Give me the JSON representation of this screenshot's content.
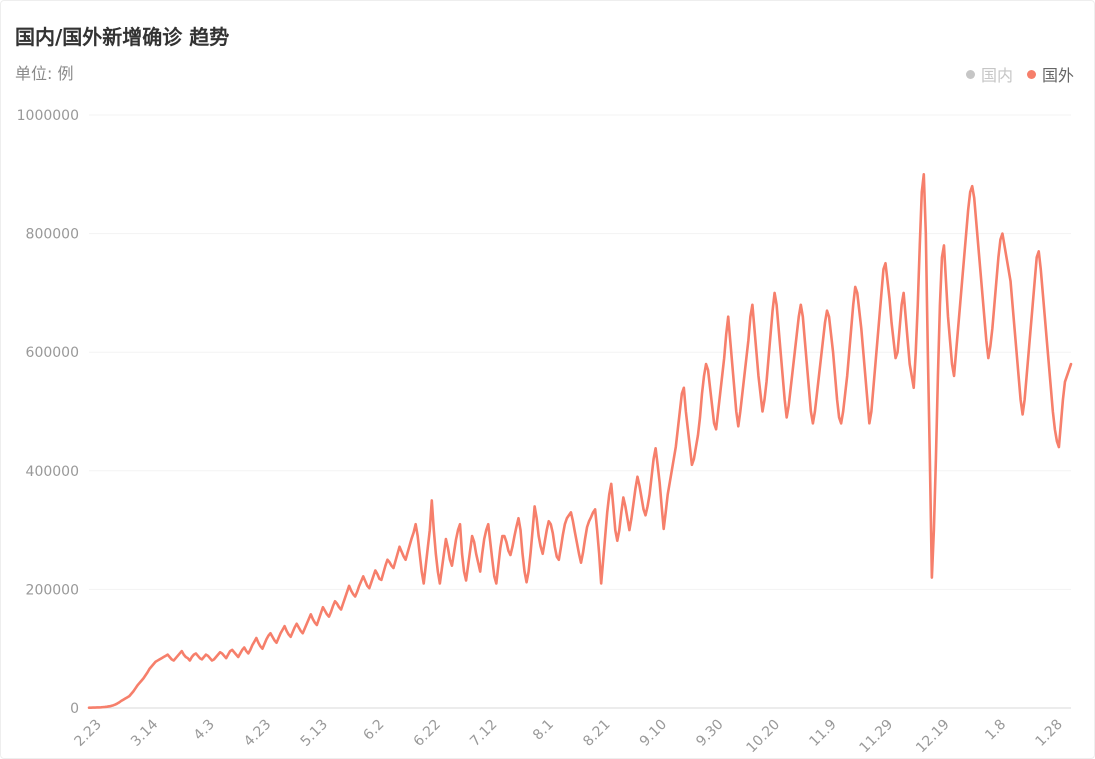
{
  "header": {
    "title": "国内/国外新增确诊 趋势",
    "unit": "单位: 例"
  },
  "legend": [
    {
      "name": "国内",
      "color": "#c6c6c6",
      "active": false
    },
    {
      "name": "国外",
      "color": "#f67f6b",
      "active": true
    }
  ],
  "chart_data": {
    "type": "line",
    "title": "国内/国外新增确诊 趋势",
    "ylabel": "单位: 例",
    "ylim": [
      0,
      1000000
    ],
    "yticks": [
      "0",
      "200000",
      "400000",
      "600000",
      "800000",
      "1000000"
    ],
    "xticks": [
      "2.23",
      "3.14",
      "4.3",
      "4.23",
      "5.13",
      "6.2",
      "6.22",
      "7.12",
      "8.1",
      "8.21",
      "9.10",
      "9.30",
      "10.20",
      "11.9",
      "11.29",
      "12.19",
      "1.8",
      "1.28"
    ],
    "grid": true,
    "legend_position": "top-right",
    "series": [
      {
        "name": "国外",
        "color": "#f67f6b",
        "x_start": "2.23",
        "values": [
          500,
          600,
          700,
          800,
          900,
          1000,
          1200,
          1500,
          1800,
          2200,
          2800,
          3500,
          4500,
          5800,
          7500,
          9500,
          12000,
          14000,
          16000,
          18000,
          20000,
          24000,
          28000,
          33000,
          38000,
          42000,
          46000,
          50000,
          55000,
          60000,
          66000,
          70000,
          74000,
          78000,
          80000,
          82000,
          84000,
          86000,
          88000,
          90000,
          86000,
          82000,
          80000,
          84000,
          88000,
          92000,
          96000,
          90000,
          86000,
          84000,
          80000,
          86000,
          90000,
          92000,
          88000,
          84000,
          82000,
          86000,
          90000,
          88000,
          84000,
          80000,
          82000,
          86000,
          90000,
          94000,
          92000,
          88000,
          84000,
          90000,
          96000,
          98000,
          94000,
          90000,
          86000,
          92000,
          98000,
          102000,
          96000,
          92000,
          98000,
          106000,
          112000,
          118000,
          110000,
          104000,
          100000,
          108000,
          116000,
          122000,
          126000,
          120000,
          114000,
          110000,
          118000,
          126000,
          132000,
          138000,
          130000,
          124000,
          120000,
          128000,
          136000,
          142000,
          136000,
          130000,
          126000,
          134000,
          142000,
          150000,
          158000,
          150000,
          144000,
          140000,
          150000,
          160000,
          170000,
          164000,
          158000,
          154000,
          162000,
          172000,
          180000,
          176000,
          170000,
          166000,
          176000,
          186000,
          196000,
          206000,
          198000,
          192000,
          188000,
          196000,
          206000,
          214000,
          222000,
          214000,
          206000,
          202000,
          212000,
          222000,
          232000,
          226000,
          218000,
          216000,
          228000,
          240000,
          250000,
          246000,
          240000,
          236000,
          248000,
          260000,
          272000,
          264000,
          256000,
          250000,
          262000,
          274000,
          286000,
          296000,
          310000,
          290000,
          260000,
          230000,
          210000,
          240000,
          270000,
          300000,
          350000,
          300000,
          260000,
          230000,
          210000,
          235000,
          260000,
          285000,
          270000,
          250000,
          240000,
          262000,
          284000,
          300000,
          310000,
          260000,
          230000,
          215000,
          240000,
          265000,
          290000,
          280000,
          260000,
          245000,
          230000,
          260000,
          285000,
          300000,
          310000,
          280000,
          250000,
          222000,
          210000,
          240000,
          270000,
          290000,
          290000,
          280000,
          265000,
          258000,
          272000,
          290000,
          306000,
          320000,
          300000,
          260000,
          230000,
          212000,
          230000,
          262000,
          300000,
          340000,
          320000,
          290000,
          272000,
          260000,
          280000,
          300000,
          315000,
          310000,
          295000,
          272000,
          255000,
          250000,
          270000,
          292000,
          310000,
          320000,
          325000,
          330000,
          315000,
          296000,
          278000,
          260000,
          245000,
          262000,
          285000,
          305000,
          315000,
          322000,
          330000,
          335000,
          300000,
          260000,
          210000,
          250000,
          290000,
          330000,
          360000,
          378000,
          340000,
          300000,
          282000,
          300000,
          330000,
          355000,
          340000,
          320000,
          300000,
          320000,
          345000,
          370000,
          390000,
          375000,
          355000,
          335000,
          325000,
          340000,
          360000,
          390000,
          420000,
          438000,
          410000,
          380000,
          340000,
          302000,
          330000,
          360000,
          380000,
          400000,
          420000,
          440000,
          470000,
          500000,
          530000,
          540000,
          500000,
          470000,
          440000,
          410000,
          420000,
          440000,
          460000,
          490000,
          530000,
          560000,
          580000,
          570000,
          540000,
          510000,
          480000,
          470000,
          500000,
          530000,
          560000,
          590000,
          630000,
          660000,
          620000,
          580000,
          540000,
          500000,
          475000,
          500000,
          530000,
          560000,
          590000,
          620000,
          660000,
          680000,
          640000,
          600000,
          560000,
          530000,
          500000,
          520000,
          550000,
          590000,
          630000,
          670000,
          700000,
          680000,
          640000,
          600000,
          560000,
          520000,
          490000,
          510000,
          540000,
          570000,
          600000,
          630000,
          660000,
          680000,
          660000,
          620000,
          580000,
          540000,
          500000,
          480000,
          500000,
          530000,
          560000,
          590000,
          620000,
          650000,
          670000,
          660000,
          630000,
          600000,
          560000,
          520000,
          490000,
          480000,
          500000,
          530000,
          560000,
          600000,
          640000,
          680000,
          710000,
          700000,
          670000,
          640000,
          600000,
          560000,
          520000,
          480000,
          500000,
          540000,
          580000,
          620000,
          660000,
          700000,
          740000,
          750000,
          720000,
          690000,
          650000,
          620000,
          590000,
          600000,
          640000,
          680000,
          700000,
          660000,
          620000,
          580000,
          560000,
          540000,
          600000,
          680000,
          780000,
          870000,
          900000,
          800000,
          600000,
          420000,
          220000,
          300000,
          420000,
          560000,
          680000,
          760000,
          780000,
          720000,
          660000,
          620000,
          580000,
          560000,
          600000,
          640000,
          680000,
          720000,
          760000,
          800000,
          840000,
          870000,
          880000,
          860000,
          820000,
          780000,
          740000,
          700000,
          660000,
          620000,
          590000,
          610000,
          640000,
          680000,
          720000,
          760000,
          790000,
          800000,
          780000,
          760000,
          740000,
          720000,
          680000,
          640000,
          600000,
          560000,
          520000,
          495000,
          520000,
          560000,
          600000,
          640000,
          680000,
          720000,
          760000,
          770000,
          740000,
          700000,
          660000,
          620000,
          580000,
          540000,
          500000,
          470000,
          450000,
          440000,
          480000,
          520000,
          550000,
          560000,
          570000,
          580000
        ]
      },
      {
        "name": "国内",
        "color": "#c6c6c6",
        "visible": false,
        "values": []
      }
    ]
  }
}
